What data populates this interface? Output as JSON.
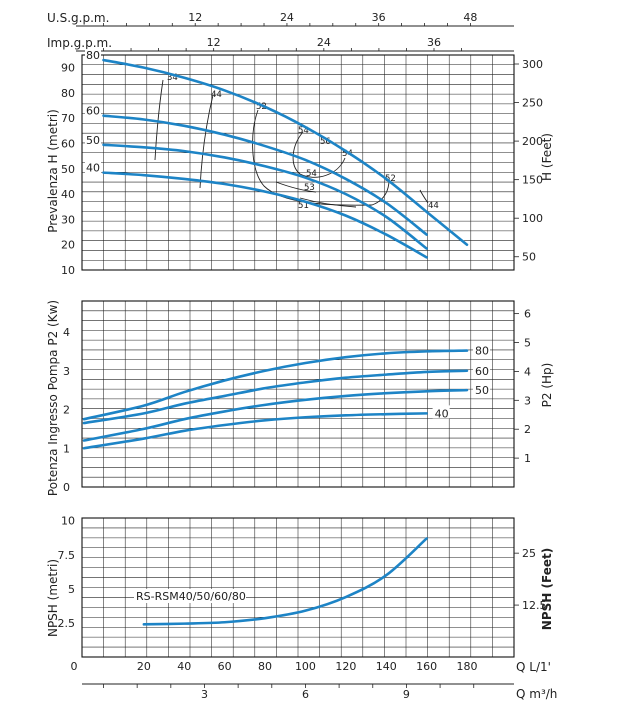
{
  "chart_data": [
    {
      "type": "line",
      "panel": "head",
      "ylabel": "Prevalenza H (metri)",
      "ylabel2": "H (Feet)",
      "ylim": [
        10,
        95
      ],
      "yticks": [
        10,
        20,
        30,
        40,
        50,
        60,
        70,
        80,
        90
      ],
      "y2ticks": [
        50,
        100,
        150,
        200,
        250,
        300
      ],
      "top_axes": [
        {
          "label": "U.S.g.p.m.",
          "ticks": [
            12,
            24,
            36,
            48
          ]
        },
        {
          "label": "Imp.g.p.m.",
          "ticks": [
            12,
            24,
            36
          ]
        }
      ],
      "series": [
        {
          "name": "80",
          "x": [
            0,
            20,
            40,
            60,
            80,
            100,
            120,
            140,
            160,
            180
          ],
          "y": [
            93,
            90,
            86,
            81,
            74.5,
            66.5,
            57,
            46,
            33,
            20
          ]
        },
        {
          "name": "60",
          "x": [
            0,
            20,
            40,
            60,
            80,
            100,
            120,
            140,
            160
          ],
          "y": [
            71,
            69.5,
            67,
            63.5,
            59,
            53.5,
            46,
            36.5,
            24
          ]
        },
        {
          "name": "50",
          "x": [
            0,
            20,
            40,
            60,
            80,
            100,
            120,
            140,
            160
          ],
          "y": [
            59.5,
            58.5,
            57,
            54.5,
            51,
            46.5,
            40,
            31,
            18.5
          ]
        },
        {
          "name": "40",
          "x": [
            0,
            20,
            40,
            60,
            80,
            100,
            120,
            140,
            160
          ],
          "y": [
            48.5,
            47.5,
            46,
            44,
            41,
            37,
            31.5,
            24,
            15
          ]
        }
      ],
      "efficiency_labels": [
        "34",
        "44",
        "52",
        "54",
        "56",
        "54",
        "53",
        "51",
        "52",
        "44"
      ]
    },
    {
      "type": "line",
      "panel": "power",
      "ylabel": "Potenza Ingresso Pompa P2 (Kw)",
      "ylabel2": "P2 (Hp)",
      "ylim": [
        0,
        4.8
      ],
      "yticks": [
        0,
        1,
        2,
        3,
        4
      ],
      "y2ticks": [
        1,
        2,
        3,
        4,
        5,
        6
      ],
      "series": [
        {
          "name": "80",
          "x": [
            0,
            20,
            40,
            60,
            80,
            100,
            120,
            140,
            160,
            180
          ],
          "y": [
            1.75,
            2.1,
            2.45,
            2.75,
            3.0,
            3.2,
            3.35,
            3.45,
            3.5,
            3.52
          ]
        },
        {
          "name": "60",
          "x": [
            0,
            20,
            40,
            60,
            80,
            100,
            120,
            140,
            160,
            180
          ],
          "y": [
            1.65,
            1.9,
            2.15,
            2.35,
            2.55,
            2.7,
            2.82,
            2.9,
            2.97,
            3.0
          ]
        },
        {
          "name": "50",
          "x": [
            0,
            20,
            40,
            60,
            80,
            100,
            120,
            140,
            160,
            180
          ],
          "y": [
            1.2,
            1.5,
            1.75,
            1.95,
            2.12,
            2.25,
            2.35,
            2.42,
            2.47,
            2.5
          ]
        },
        {
          "name": "40",
          "x": [
            0,
            20,
            40,
            60,
            80,
            100,
            120,
            140,
            160
          ],
          "y": [
            1.0,
            1.25,
            1.45,
            1.6,
            1.72,
            1.8,
            1.85,
            1.88,
            1.9
          ]
        }
      ]
    },
    {
      "type": "line",
      "panel": "npsh",
      "ylabel": "NPSH (metri)",
      "ylabel2": "NPSH (Feet)",
      "ylim": [
        0,
        10
      ],
      "yticks": [
        "2.5",
        "5",
        "7.5",
        "10"
      ],
      "y2ticks": [
        "12.5",
        "25"
      ],
      "series": [
        {
          "name": "RS-RSM40/50/60/80",
          "x": [
            20,
            40,
            60,
            80,
            100,
            120,
            140,
            160
          ],
          "y": [
            2.4,
            2.45,
            2.55,
            2.85,
            3.4,
            4.4,
            6.0,
            8.7
          ]
        }
      ],
      "bottom_axes": [
        {
          "label": "Q L/1'",
          "ticks": [
            0,
            20,
            40,
            60,
            80,
            100,
            120,
            140,
            160,
            180
          ]
        },
        {
          "label": "Q m³/h",
          "ticks": [
            3,
            6,
            9
          ]
        }
      ]
    }
  ],
  "colors": {
    "curve": "#1d84c6",
    "grid": "#222222"
  }
}
